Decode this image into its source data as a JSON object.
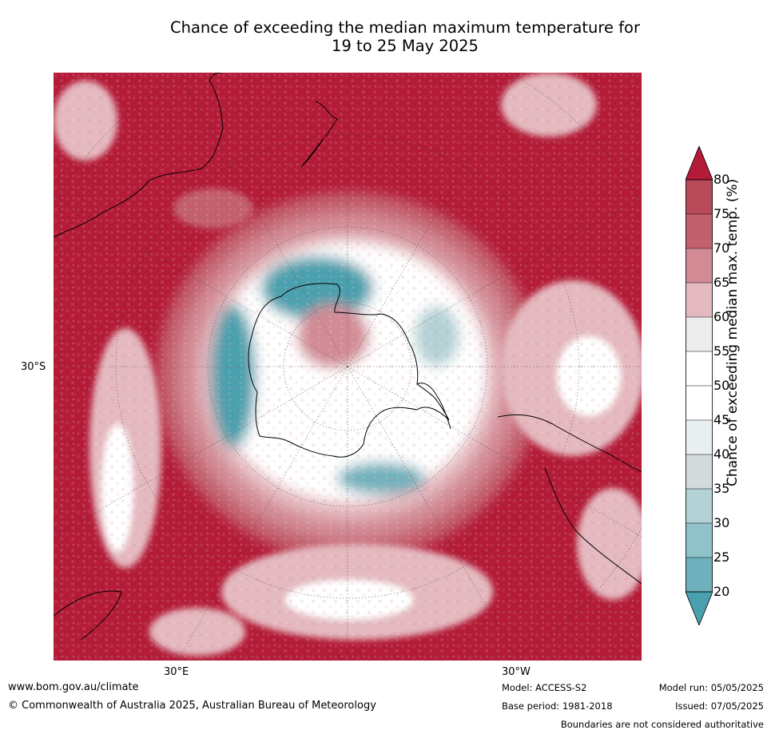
{
  "title": {
    "line1": "Chance of exceeding the median maximum temperature for",
    "line2": "19 to 25 May 2025"
  },
  "map": {
    "projection": "south-polar-stereographic",
    "lat_labels": [
      "30°S"
    ],
    "lon_labels": [
      "30°E",
      "30°W"
    ],
    "features": [
      "Antarctica",
      "Australia",
      "New Zealand",
      "South America",
      "Africa"
    ]
  },
  "colorbar": {
    "label": "Chance of exceeding median max. temp. (%)",
    "ticks": [
      "20",
      "25",
      "30",
      "35",
      "40",
      "45",
      "50",
      "55",
      "60",
      "65",
      "70",
      "75",
      "80"
    ],
    "colors": [
      "#4aa0ae",
      "#6eb1bc",
      "#90c2ca",
      "#b3d2d6",
      "#d4d9dc",
      "#e9eef1",
      "#ffffff",
      "#ffffff",
      "#ececec",
      "#e4b9bf",
      "#d28b95",
      "#c3606e",
      "#b84a59",
      "#b31b37"
    ],
    "extend": "both"
  },
  "footer": {
    "website": "www.bom.gov.au/climate",
    "copyright": "© Commonwealth of Australia 2025, Australian Bureau of Meteorology",
    "model": "Model: ACCESS-S2",
    "base_period": "Base period: 1981-2018",
    "model_run": "Model run: 05/05/2025",
    "issued": "Issued: 07/05/2025",
    "disclaimer": "Boundaries are not considered authoritative"
  }
}
